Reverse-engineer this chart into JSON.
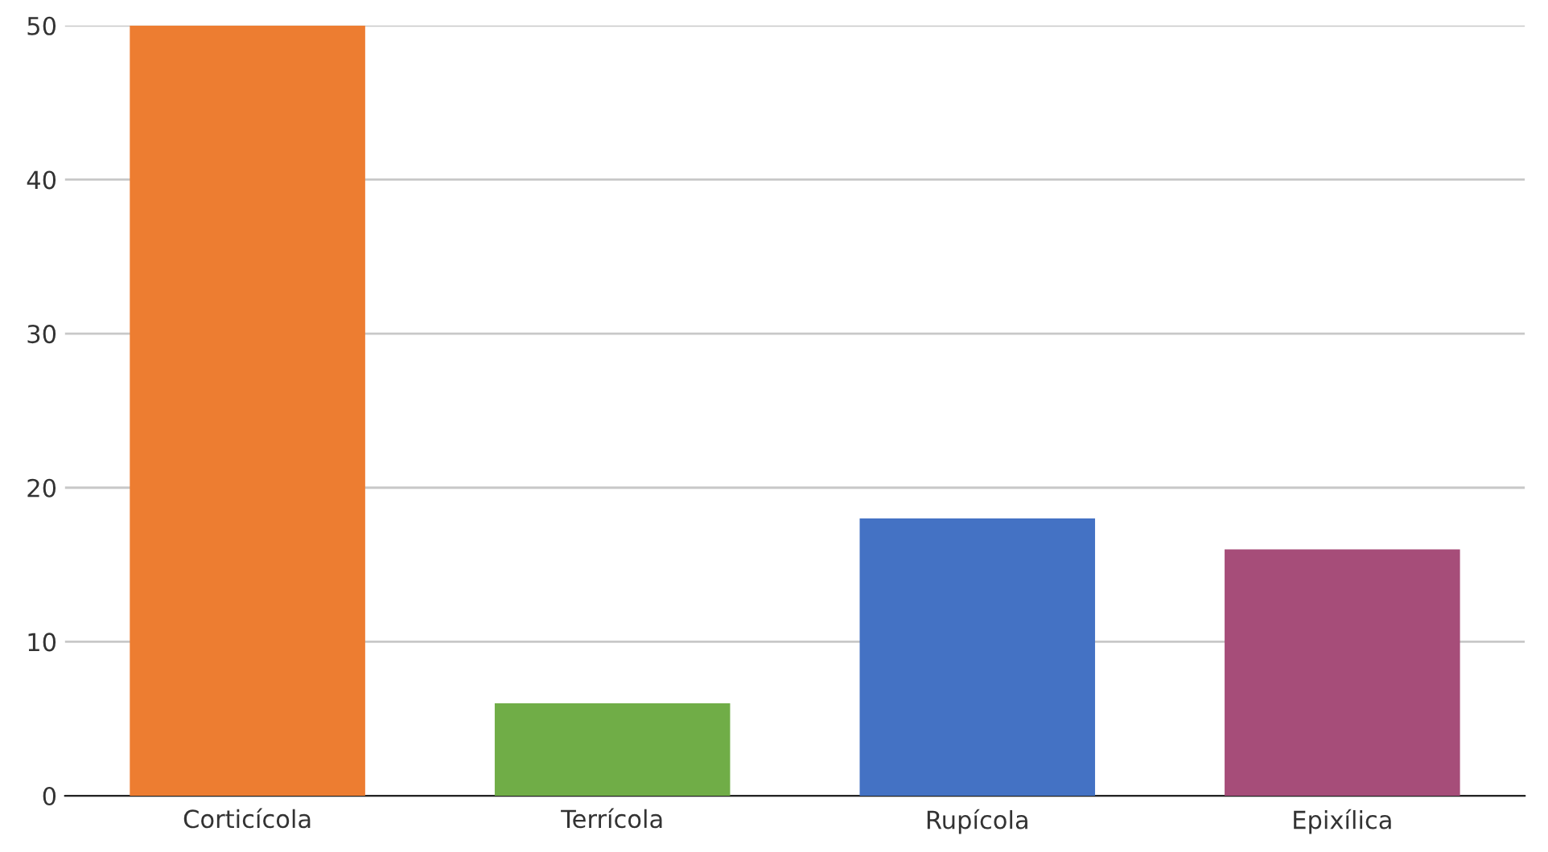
{
  "chart_data": {
    "type": "bar",
    "categories": [
      "Corticícola",
      "Terrícola",
      "Rupícola",
      "Epixílica"
    ],
    "values": [
      50,
      6,
      18,
      16
    ],
    "colors": [
      "#ed7d31",
      "#70ad47",
      "#4472c4",
      "#a64d79"
    ],
    "ylim": [
      0,
      50
    ],
    "yticks": [
      0,
      10,
      20,
      30,
      40,
      50
    ],
    "grid": "y"
  }
}
